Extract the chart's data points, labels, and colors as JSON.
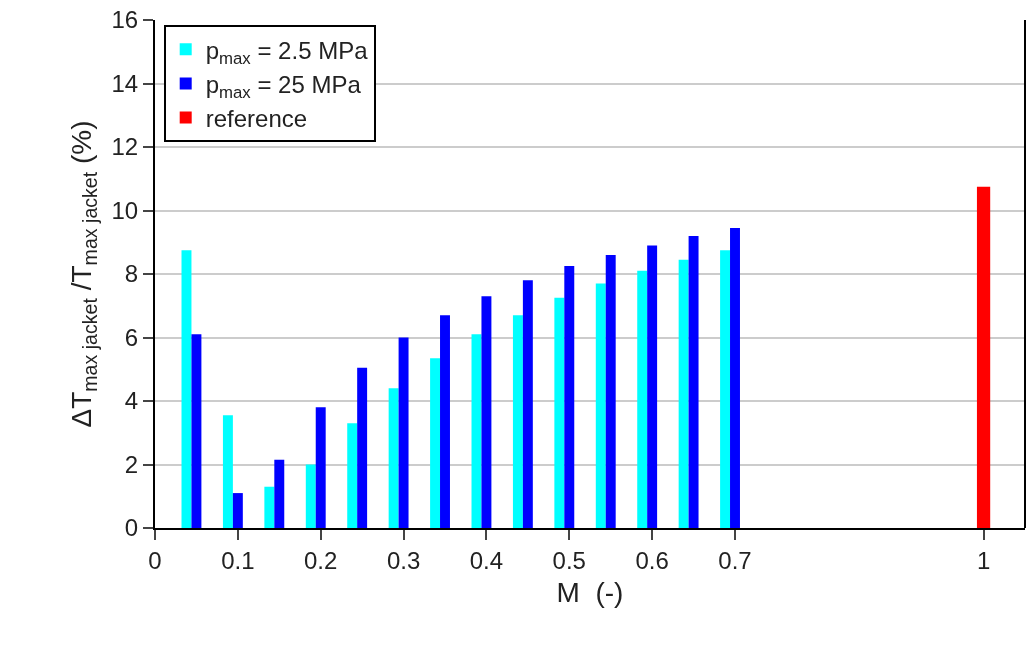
{
  "chart_data": {
    "type": "bar",
    "xlabel": "M  (-)",
    "ylabel": "ΔT$_{max jacket}$ /T$_{max jacket}$ (%)",
    "x": [
      0.05,
      0.1,
      0.15,
      0.2,
      0.25,
      0.3,
      0.35,
      0.4,
      0.45,
      0.5,
      0.55,
      0.6,
      0.65,
      0.7
    ],
    "series": [
      {
        "name": "p$_{max}$ = 2.5 MPa",
        "color": "#00ffff",
        "values": [
          8.75,
          3.55,
          1.3,
          2.0,
          3.3,
          4.4,
          5.35,
          6.1,
          6.7,
          7.25,
          7.7,
          8.1,
          8.45,
          8.75
        ]
      },
      {
        "name": "p$_{max}$ = 25 MPa",
        "color": "#0000ff",
        "values": [
          6.1,
          1.1,
          2.15,
          3.8,
          5.05,
          6.0,
          6.7,
          7.3,
          7.8,
          8.25,
          8.6,
          8.9,
          9.2,
          9.45
        ]
      },
      {
        "name": "reference",
        "color": "#ff0000",
        "x": [
          1
        ],
        "values": [
          10.75
        ]
      }
    ],
    "xlim": [
      0,
      1.05
    ],
    "xticks": [
      0,
      0.1,
      0.2,
      0.3,
      0.4,
      0.5,
      0.6,
      0.7,
      1
    ],
    "ylim": [
      0,
      16
    ],
    "yticks": [
      0,
      2,
      4,
      6,
      8,
      10,
      12,
      14,
      16
    ],
    "grid": "y",
    "legend": "top left"
  }
}
